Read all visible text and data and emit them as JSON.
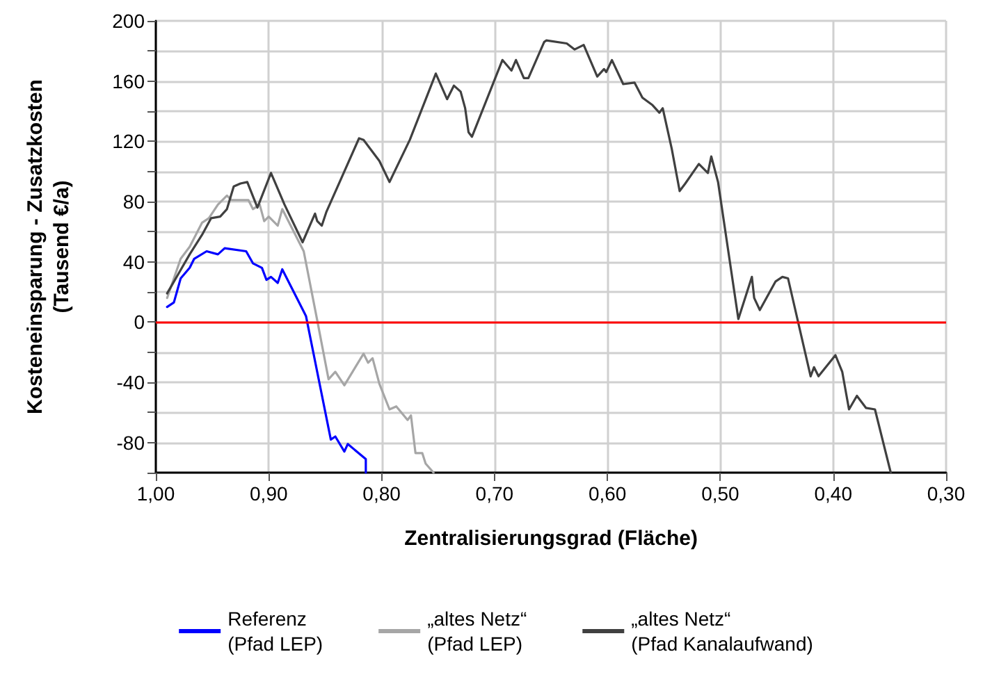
{
  "chart_data": {
    "type": "line",
    "xlabel": "Zentralisierungsgrad (Fläche)",
    "ylabel": "Kosteneinsparung - Zusatzkosten\n(Tausend €/a)",
    "xlim": [
      1.0,
      0.3
    ],
    "ylim": [
      -100,
      200
    ],
    "xticks": [
      {
        "value": 1.0,
        "label": "1,00"
      },
      {
        "value": 0.9,
        "label": "0,90"
      },
      {
        "value": 0.8,
        "label": "0,80"
      },
      {
        "value": 0.7,
        "label": "0,70"
      },
      {
        "value": 0.6,
        "label": "0,60"
      },
      {
        "value": 0.5,
        "label": "0,50"
      },
      {
        "value": 0.4,
        "label": "0,40"
      },
      {
        "value": 0.3,
        "label": "0,30"
      }
    ],
    "yticks": [
      {
        "value": -100,
        "label": null
      },
      -80,
      {
        "value": -60,
        "label": null
      },
      -40,
      {
        "value": -20,
        "label": null
      },
      0,
      {
        "value": 20,
        "label": null
      },
      40,
      {
        "value": 60,
        "label": null
      },
      80,
      {
        "value": 100,
        "label": null
      },
      120,
      {
        "value": 140,
        "label": null
      },
      160,
      {
        "value": 180,
        "label": null
      },
      200
    ],
    "grid": true,
    "legend": "bottom",
    "marker": "none",
    "line_style": "solid",
    "ref_lines": [
      {
        "axis": "y",
        "value": 0,
        "label": null,
        "color": "#ff0000"
      }
    ],
    "series": [
      {
        "name": "Referenz\n(Pfad LEP)",
        "color": "#0000ff",
        "x": [
          0.99,
          0.984,
          0.978,
          0.97,
          0.966,
          0.955,
          0.945,
          0.939,
          0.92,
          0.914,
          0.906,
          0.902,
          0.898,
          0.892,
          0.888,
          0.869,
          0.867,
          0.845,
          0.841,
          0.833,
          0.83,
          0.814,
          0.814
        ],
        "values": [
          10,
          13,
          29,
          36,
          42,
          47,
          45,
          49,
          47,
          39,
          36,
          28,
          30,
          26,
          35,
          7,
          4,
          -78,
          -76,
          -86,
          -81,
          -91,
          -100
        ]
      },
      {
        "name": "„altes Netz“\n(Pfad LEP)",
        "color": "#a6a6a6",
        "x": [
          0.99,
          0.978,
          0.97,
          0.959,
          0.953,
          0.945,
          0.937,
          0.933,
          0.918,
          0.914,
          0.908,
          0.904,
          0.9,
          0.892,
          0.888,
          0.869,
          0.857,
          0.847,
          0.841,
          0.833,
          0.816,
          0.812,
          0.808,
          0.802,
          0.793,
          0.787,
          0.777,
          0.774,
          0.77,
          0.764,
          0.761,
          0.754
        ],
        "values": [
          16,
          42,
          50,
          66,
          69,
          78,
          84,
          81,
          81,
          75,
          78,
          67,
          70,
          64,
          75,
          47,
          1,
          -38,
          -33,
          -42,
          -21,
          -27,
          -24,
          -41,
          -58,
          -56,
          -65,
          -62,
          -87,
          -87,
          -94,
          -100
        ]
      },
      {
        "name": "„altes Netz“\n(Pfad Kanalaufwand)",
        "color": "#404040",
        "x": [
          0.99,
          0.98,
          0.97,
          0.959,
          0.951,
          0.943,
          0.937,
          0.931,
          0.925,
          0.919,
          0.91,
          0.898,
          0.886,
          0.87,
          0.859,
          0.857,
          0.853,
          0.849,
          0.82,
          0.816,
          0.81,
          0.802,
          0.793,
          0.775,
          0.752,
          0.742,
          0.736,
          0.73,
          0.726,
          0.723,
          0.72,
          0.693,
          0.685,
          0.681,
          0.674,
          0.67,
          0.656,
          0.654,
          0.636,
          0.629,
          0.621,
          0.609,
          0.603,
          0.601,
          0.596,
          0.586,
          0.576,
          0.569,
          0.56,
          0.554,
          0.551,
          0.543,
          0.536,
          0.531,
          0.519,
          0.511,
          0.508,
          0.502,
          0.484,
          0.472,
          0.47,
          0.465,
          0.451,
          0.445,
          0.44,
          0.42,
          0.417,
          0.413,
          0.398,
          0.392,
          0.386,
          0.379,
          0.371,
          0.363,
          0.349
        ],
        "values": [
          19,
          32,
          45,
          58,
          69,
          70,
          75,
          90,
          92,
          93,
          76,
          99,
          78,
          53,
          72,
          67,
          64,
          73,
          122,
          121,
          115,
          107,
          93,
          121,
          165,
          148,
          157,
          153,
          142,
          126,
          123,
          174,
          167,
          174,
          162,
          162,
          186,
          187,
          185,
          181,
          184,
          163,
          168,
          166,
          174,
          158,
          159,
          149,
          144,
          139,
          142,
          115,
          87,
          92,
          105,
          99,
          110,
          93,
          2,
          30,
          16,
          8,
          27,
          30,
          29,
          -36,
          -30,
          -36,
          -22,
          -33,
          -58,
          -49,
          -57,
          -58,
          -100
        ]
      }
    ]
  }
}
